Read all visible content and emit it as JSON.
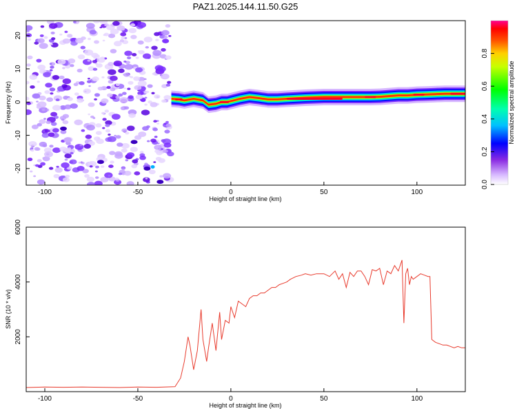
{
  "title": "PAZ1.2025.144.11.50.G25",
  "chart_data": [
    {
      "type": "heatmap",
      "xlabel": "Height of straight line (km)",
      "ylabel": "Frequency (Hz)",
      "xlim": [
        -110,
        126
      ],
      "ylim": [
        -25,
        24.5
      ],
      "xticks": [
        -100,
        -50,
        0,
        50,
        100
      ],
      "yticks": [
        -20,
        -10,
        0,
        10,
        20
      ],
      "grid": false,
      "noise_region_x": [
        -110,
        -32
      ],
      "ridge_start_x": -32,
      "ridge": {
        "x": [
          -32,
          -28,
          -25,
          -20,
          -15,
          -12,
          -8,
          -5,
          -2,
          0,
          5,
          10,
          15,
          20,
          25,
          30,
          40,
          50,
          60,
          70,
          75,
          80,
          85,
          90,
          95,
          100,
          105,
          110,
          115,
          120,
          126
        ],
        "frequency": [
          1.0,
          0.8,
          0.5,
          1.0,
          0.5,
          -0.8,
          -0.5,
          0.0,
          0.0,
          0.3,
          1.0,
          1.5,
          1.2,
          0.8,
          0.8,
          1.0,
          1.3,
          1.5,
          1.5,
          1.5,
          1.5,
          1.6,
          1.8,
          2.0,
          2.0,
          2.2,
          2.3,
          2.4,
          2.5,
          2.5,
          2.5
        ]
      },
      "colorbar": {
        "label": "Normalized spectral amplitude",
        "ticks": [
          "0.0",
          "0.2",
          "0.4",
          "0.6",
          "0.8"
        ],
        "range": [
          0,
          1
        ]
      }
    },
    {
      "type": "line",
      "xlabel": "Height of straight line (km)",
      "ylabel": "SNR (10 * v/v)",
      "xlim": [
        -110,
        126
      ],
      "ylim": [
        0,
        6000
      ],
      "xticks": [
        -100,
        -50,
        0,
        50,
        100
      ],
      "yticks": [
        2000,
        4000,
        6000
      ],
      "grid": false,
      "color": "#e8392b",
      "series": [
        {
          "x": [
            -110,
            -100,
            -90,
            -80,
            -70,
            -60,
            -50,
            -40,
            -30,
            -27,
            -25,
            -23,
            -22,
            -20,
            -18,
            -16,
            -15,
            -13,
            -12,
            -10,
            -8,
            -6,
            -5,
            -3,
            -1,
            0,
            2,
            4,
            6,
            8,
            10,
            12,
            14,
            16,
            18,
            20,
            22,
            24,
            26,
            28,
            30,
            32,
            35,
            38,
            40,
            43,
            46,
            50,
            53,
            56,
            58,
            60,
            62,
            64,
            66,
            68,
            70,
            72,
            74,
            76,
            78,
            80,
            82,
            84,
            86,
            88,
            90,
            92,
            93,
            94,
            95,
            96,
            97,
            98,
            100,
            102,
            104,
            106,
            107,
            108,
            110,
            112,
            114,
            116,
            118,
            120,
            122,
            124,
            126
          ],
          "y": [
            150,
            170,
            160,
            170,
            160,
            150,
            170,
            160,
            180,
            500,
            1100,
            2000,
            1700,
            800,
            1500,
            3000,
            1900,
            1100,
            1600,
            2500,
            1500,
            2900,
            1900,
            2600,
            2500,
            3100,
            2700,
            3300,
            3200,
            3100,
            3400,
            3500,
            3500,
            3600,
            3600,
            3700,
            3800,
            3800,
            3900,
            3950,
            4000,
            4100,
            4200,
            4250,
            4300,
            4250,
            4300,
            4300,
            4200,
            4400,
            4100,
            4300,
            3800,
            4350,
            4200,
            4400,
            4400,
            4200,
            3900,
            4450,
            4400,
            4500,
            3900,
            4400,
            4300,
            4600,
            4400,
            4800,
            2500,
            4300,
            4500,
            3900,
            4200,
            4100,
            4200,
            4300,
            4250,
            4200,
            4200,
            1900,
            1800,
            1750,
            1700,
            1700,
            1650,
            1600,
            1650,
            1600,
            1600
          ]
        }
      ]
    }
  ]
}
